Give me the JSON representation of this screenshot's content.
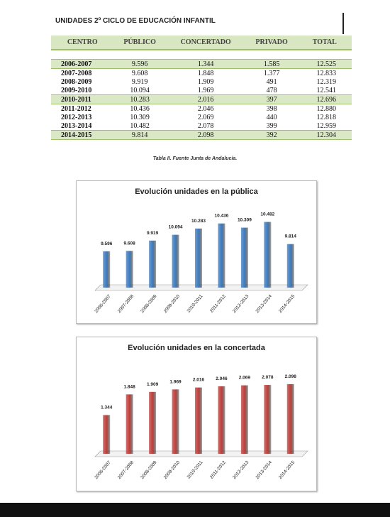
{
  "header": {
    "title": "UNIDADES 2º CICLO DE EDUCACIÓN INFANTIL"
  },
  "table": {
    "columns": [
      "CENTRO",
      "PÚBLICO",
      "CONCERTADO",
      "PRIVADO",
      "TOTAL"
    ],
    "rows": [
      [
        "2006-2007",
        "9.596",
        "1.344",
        "1.585",
        "12.525"
      ],
      [
        "2007-2008",
        "9.608",
        "1.848",
        "1.377",
        "12.833"
      ],
      [
        "2008-2009",
        "9.919",
        "1.909",
        "491",
        "12.319"
      ],
      [
        "2009-2010",
        "10.094",
        "1.969",
        "478",
        "12.541"
      ],
      [
        "2010-2011",
        "10.283",
        "2.016",
        "397",
        "12.696"
      ],
      [
        "2011-2012",
        "10.436",
        "2.046",
        "398",
        "12.880"
      ],
      [
        "2012-2013",
        "10.309",
        "2.069",
        "440",
        "12.818"
      ],
      [
        "2013-2014",
        "10.482",
        "2.078",
        "399",
        "12.959"
      ],
      [
        "2014-2015",
        "9.814",
        "2.098",
        "392",
        "12.304"
      ]
    ],
    "caption": "Tabla II. Fuente Junta de Andalucía."
  },
  "chart_data": [
    {
      "type": "bar",
      "title": "Evolución unidades en la pública",
      "color": "#3f7cc0",
      "categories": [
        "2006-2007",
        "2007-2008",
        "2008-2009",
        "2009-2010",
        "2010-2011",
        "2011-2012",
        "2012-2013",
        "2013-2014",
        "2014-2015"
      ],
      "values": [
        9596,
        9608,
        9919,
        10094,
        10283,
        10436,
        10309,
        10482,
        9814
      ],
      "value_labels": [
        "9.596",
        "9.608",
        "9.919",
        "10.094",
        "10.283",
        "10.436",
        "10.309",
        "10.482",
        "9.814"
      ],
      "ylim": [
        8500,
        10600
      ]
    },
    {
      "type": "bar",
      "title": "Evolución unidades en la concertada",
      "color": "#c0403c",
      "categories": [
        "2006-2007",
        "2007-2008",
        "2008-2009",
        "2009-2010",
        "2010-2011",
        "2011-2012",
        "2012-2013",
        "2013-2014",
        "2014-2015"
      ],
      "values": [
        1344,
        1848,
        1909,
        1969,
        2016,
        2046,
        2069,
        2078,
        2098
      ],
      "value_labels": [
        "1.344",
        "1.848",
        "1.909",
        "1.969",
        "2.016",
        "2.046",
        "2.069",
        "2.078",
        "2.098"
      ],
      "ylim": [
        400,
        2200
      ]
    }
  ]
}
